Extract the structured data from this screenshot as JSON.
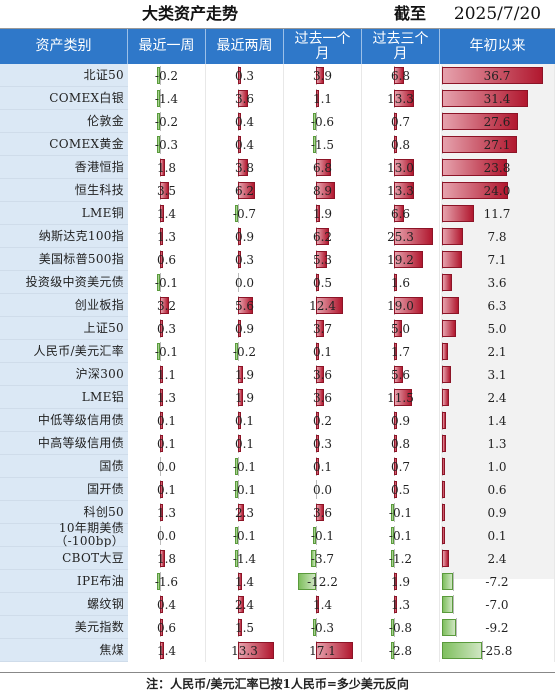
{
  "title": "大类资产走势",
  "as_of_label": "截至",
  "as_of_date": "2025/7/20",
  "columns": [
    "资产类别",
    "最近一周",
    "最近两周",
    "过去一个月",
    "过去三个月",
    "年初以来"
  ],
  "rows": [
    {
      "name": "北证50",
      "v": [
        -0.2,
        0.3,
        3.9,
        6.8,
        36.7
      ]
    },
    {
      "name": "COMEX白银",
      "v": [
        -1.4,
        3.6,
        1.1,
        13.3,
        31.4
      ]
    },
    {
      "name": "伦敦金",
      "v": [
        -0.2,
        0.4,
        -0.6,
        0.7,
        27.6
      ]
    },
    {
      "name": "COMEX黄金",
      "v": [
        -0.3,
        0.4,
        -1.5,
        0.8,
        27.1
      ]
    },
    {
      "name": "香港恒指",
      "v": [
        1.8,
        3.8,
        6.8,
        13.0,
        23.8
      ]
    },
    {
      "name": "恒生科技",
      "v": [
        3.5,
        6.2,
        8.9,
        13.3,
        24.0
      ]
    },
    {
      "name": "LME铜",
      "v": [
        1.4,
        -0.7,
        1.9,
        6.6,
        11.7
      ]
    },
    {
      "name": "纳斯达克100指",
      "v": [
        1.3,
        0.9,
        6.2,
        25.3,
        7.8
      ]
    },
    {
      "name": "美国标普500指",
      "v": [
        0.6,
        0.3,
        5.3,
        19.2,
        7.1
      ]
    },
    {
      "name": "投资级中资美元债",
      "v": [
        -0.1,
        0.0,
        0.5,
        1.6,
        3.6
      ]
    },
    {
      "name": "创业板指",
      "v": [
        3.2,
        5.6,
        12.4,
        19.0,
        6.3
      ]
    },
    {
      "name": "上证50",
      "v": [
        0.3,
        0.9,
        3.7,
        5.0,
        5.0
      ]
    },
    {
      "name": "人民币/美元汇率",
      "v": [
        -0.1,
        -0.2,
        0.1,
        1.7,
        2.1
      ]
    },
    {
      "name": "沪深300",
      "v": [
        1.1,
        1.9,
        3.6,
        5.6,
        3.1
      ]
    },
    {
      "name": "LME铝",
      "v": [
        1.3,
        1.9,
        3.6,
        11.5,
        2.4
      ]
    },
    {
      "name": "中低等级信用债",
      "v": [
        0.1,
        0.1,
        0.2,
        0.9,
        1.4
      ]
    },
    {
      "name": "中高等级信用债",
      "v": [
        0.1,
        0.1,
        0.3,
        0.8,
        1.3
      ]
    },
    {
      "name": "国债",
      "v": [
        0.0,
        -0.1,
        0.1,
        0.7,
        1.0
      ]
    },
    {
      "name": "国开债",
      "v": [
        0.1,
        -0.1,
        0.0,
        0.5,
        0.6
      ]
    },
    {
      "name": "科创50",
      "v": [
        1.3,
        2.3,
        3.6,
        -0.1,
        0.9
      ]
    },
    {
      "name": "10年期美债（-100bp）",
      "v": [
        0.0,
        -0.1,
        -0.1,
        -0.1,
        0.1
      ]
    },
    {
      "name": "CBOT大豆",
      "v": [
        1.8,
        -1.4,
        -3.7,
        -1.2,
        2.4
      ]
    },
    {
      "name": "IPE布油",
      "v": [
        -1.6,
        1.4,
        -12.2,
        1.9,
        -7.2
      ]
    },
    {
      "name": "螺纹钢",
      "v": [
        0.4,
        2.4,
        1.4,
        1.3,
        -7.0
      ]
    },
    {
      "name": "美元指数",
      "v": [
        0.6,
        1.5,
        -0.3,
        -0.8,
        -9.2
      ]
    },
    {
      "name": "焦煤",
      "v": [
        1.4,
        13.3,
        17.1,
        -2.8,
        -25.8
      ]
    }
  ],
  "footer_note": "注：人民币/美元汇率已按1人民币=多少美元反向",
  "colors": {
    "header_bg": "#2f78c9",
    "name_bg": "#dbe8f5",
    "positive": "#b1182f",
    "negative": "#7fbf5e"
  }
}
